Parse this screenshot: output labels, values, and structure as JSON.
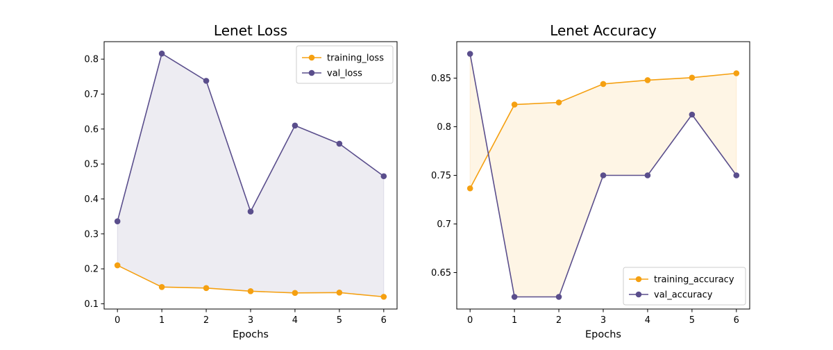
{
  "chart_data": [
    {
      "type": "line",
      "title": "Lenet Loss",
      "xlabel": "Epochs",
      "ylabel": "",
      "x": [
        0,
        1,
        2,
        3,
        4,
        5,
        6
      ],
      "xlim": [
        -0.3,
        6.3
      ],
      "ylim": [
        0.085,
        0.85
      ],
      "yticks": [
        0.1,
        0.2,
        0.3,
        0.4,
        0.5,
        0.6,
        0.7,
        0.8
      ],
      "legend_position": "upper-right",
      "fill_between": true,
      "fill_color": "#5a4e8c",
      "series": [
        {
          "name": "training_loss",
          "color": "#f5a011",
          "values": [
            0.21,
            0.148,
            0.145,
            0.136,
            0.131,
            0.132,
            0.12
          ]
        },
        {
          "name": "val_loss",
          "color": "#5a4e8c",
          "values": [
            0.336,
            0.816,
            0.738,
            0.364,
            0.61,
            0.558,
            0.465
          ]
        }
      ]
    },
    {
      "type": "line",
      "title": "Lenet Accuracy",
      "xlabel": "Epochs",
      "ylabel": "",
      "x": [
        0,
        1,
        2,
        3,
        4,
        5,
        6
      ],
      "xlim": [
        -0.3,
        6.3
      ],
      "ylim": [
        0.6125,
        0.8875
      ],
      "yticks": [
        0.65,
        0.7,
        0.75,
        0.8,
        0.85
      ],
      "legend_position": "lower-right",
      "fill_between": true,
      "fill_color": "#f5a011",
      "series": [
        {
          "name": "training_accuracy",
          "color": "#f5a011",
          "values": [
            0.7366,
            0.8228,
            0.825,
            0.844,
            0.8479,
            0.8505,
            0.855
          ]
        },
        {
          "name": "val_accuracy",
          "color": "#5a4e8c",
          "values": [
            0.875,
            0.625,
            0.625,
            0.75,
            0.75,
            0.8125,
            0.75
          ]
        }
      ]
    }
  ]
}
